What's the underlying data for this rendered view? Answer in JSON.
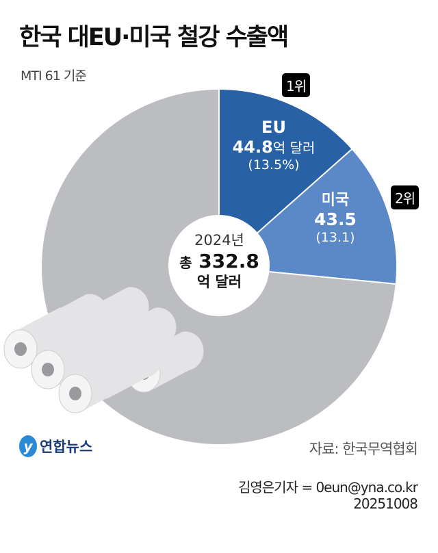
{
  "title": "한국 대EU·미국 철강 수출액",
  "subtitle": "MTI 61 기준",
  "chart_data": {
    "type": "pie",
    "unit": "억 달러",
    "categories": [
      "EU",
      "미국",
      ""
    ],
    "values": [
      44.8,
      43.5,
      244.5
    ],
    "percents": [
      13.5,
      13.1,
      73.4
    ],
    "colors": [
      "#2861a6",
      "#5b88c6",
      "#bcbdc1"
    ],
    "labels": [
      {
        "name": "EU",
        "value": "44.8",
        "unit": "억 달러",
        "pct": "(13.5%)",
        "rank": "1위"
      },
      {
        "name": "미국",
        "value": "43.5",
        "unit": "",
        "pct": "(13.1)",
        "rank": "2위"
      }
    ],
    "total": {
      "year": "2024년",
      "prefix": "총",
      "value": "332.8",
      "unit": "억 달러"
    }
  },
  "logo": "연합뉴스",
  "source": "자료: 한국무역협회",
  "credit": "김영은기자 = 0eun@yna.co.kr",
  "date": "20251008"
}
